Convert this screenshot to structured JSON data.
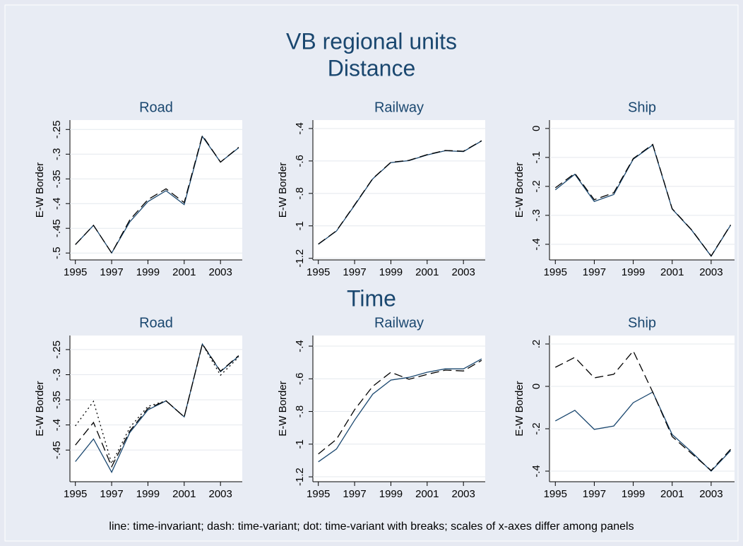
{
  "header": {
    "title": "VB regional units",
    "sections": [
      "Distance",
      "Time"
    ]
  },
  "note": "line: time-invariant; dash: time-variant; dot: time-variant with breaks; scales of x-axes differ among panels",
  "chart_data": [
    {
      "type": "line",
      "title": "Road",
      "ylabel": "E-W Border",
      "x": [
        1995,
        1996,
        1997,
        1998,
        1999,
        2000,
        2001,
        2002,
        2003,
        2004
      ],
      "xlim": [
        1994.7,
        2004.2
      ],
      "xticks": [
        1995,
        1997,
        1999,
        2001,
        2003
      ],
      "ylim": [
        -0.514,
        -0.231
      ],
      "yticks": [
        {
          "value": -0.25,
          "label": "-.25"
        },
        {
          "value": -0.3,
          "label": "-.3"
        },
        {
          "value": -0.35,
          "label": "-.35"
        },
        {
          "value": -0.4,
          "label": "-.4"
        },
        {
          "value": -0.45,
          "label": "-.45"
        },
        {
          "value": -0.5,
          "label": "-.5"
        }
      ],
      "grid": true,
      "series": [
        {
          "color": "#1a476f",
          "style": "solid",
          "values": [
            -0.483,
            -0.444,
            -0.5,
            -0.437,
            -0.396,
            -0.374,
            -0.402,
            -0.264,
            -0.316,
            -0.287
          ]
        },
        {
          "color": "#000000",
          "style": "dashed",
          "values": [
            -0.483,
            -0.444,
            -0.5,
            -0.433,
            -0.392,
            -0.37,
            -0.398,
            -0.262,
            -0.316,
            -0.286
          ]
        }
      ]
    },
    {
      "type": "line",
      "title": "Railway",
      "ylabel": "E-W Border",
      "x": [
        1995,
        1996,
        1997,
        1998,
        1999,
        2000,
        2001,
        2002,
        2003,
        2004
      ],
      "xlim": [
        1994.7,
        2004.2
      ],
      "xticks": [
        1995,
        1997,
        1999,
        2001,
        2003
      ],
      "ylim": [
        -1.21,
        -0.348
      ],
      "yticks": [
        {
          "value": -0.4,
          "label": "-.4"
        },
        {
          "value": -0.6,
          "label": "-.6"
        },
        {
          "value": -0.8,
          "label": "-.8"
        },
        -1,
        -1.2
      ],
      "grid": true,
      "series": [
        {
          "color": "#1a476f",
          "style": "solid",
          "values": [
            -1.114,
            -1.032,
            -0.873,
            -0.71,
            -0.61,
            -0.598,
            -0.563,
            -0.537,
            -0.542,
            -0.477
          ]
        },
        {
          "color": "#000000",
          "style": "dashed",
          "values": [
            -1.112,
            -1.03,
            -0.87,
            -0.708,
            -0.608,
            -0.596,
            -0.561,
            -0.535,
            -0.54,
            -0.475
          ]
        }
      ]
    },
    {
      "type": "line",
      "title": "Ship",
      "ylabel": "E-W Border",
      "x": [
        1995,
        1996,
        1997,
        1998,
        1999,
        2000,
        2001,
        2002,
        2003,
        2004
      ],
      "xlim": [
        1994.7,
        2004.2
      ],
      "xticks": [
        1995,
        1997,
        1999,
        2001,
        2003
      ],
      "ylim": [
        -0.454,
        0.029
      ],
      "yticks": [
        0,
        {
          "value": -0.1,
          "label": "-.1"
        },
        {
          "value": -0.2,
          "label": "-.2"
        },
        {
          "value": -0.3,
          "label": "-.3"
        },
        {
          "value": -0.4,
          "label": "-.4"
        }
      ],
      "grid": true,
      "series": [
        {
          "color": "#1a476f",
          "style": "solid",
          "values": [
            -0.212,
            -0.158,
            -0.252,
            -0.228,
            -0.106,
            -0.057,
            -0.278,
            -0.351,
            -0.441,
            -0.334
          ]
        },
        {
          "color": "#000000",
          "style": "dashed",
          "values": [
            -0.205,
            -0.155,
            -0.246,
            -0.222,
            -0.104,
            -0.055,
            -0.277,
            -0.35,
            -0.44,
            -0.333
          ]
        }
      ]
    },
    {
      "type": "line",
      "title": "Road",
      "ylabel": "E-W Border",
      "x": [
        1995,
        1996,
        1997,
        1998,
        1999,
        2000,
        2001,
        2002,
        2003,
        2004
      ],
      "xlim": [
        1994.7,
        2004.2
      ],
      "xticks": [
        1995,
        1997,
        1999,
        2001,
        2003
      ],
      "ylim": [
        -0.513,
        -0.222
      ],
      "yticks": [
        {
          "value": -0.25,
          "label": "-.25"
        },
        {
          "value": -0.3,
          "label": "-.3"
        },
        {
          "value": -0.35,
          "label": "-.35"
        },
        {
          "value": -0.4,
          "label": "-.4"
        },
        {
          "value": -0.45,
          "label": "-.45"
        }
      ],
      "grid": true,
      "series": [
        {
          "color": "#1a476f",
          "style": "solid",
          "values": [
            -0.473,
            -0.428,
            -0.494,
            -0.415,
            -0.37,
            -0.352,
            -0.384,
            -0.239,
            -0.294,
            -0.263
          ]
        },
        {
          "color": "#000000",
          "style": "dashed",
          "values": [
            -0.44,
            -0.395,
            -0.483,
            -0.412,
            -0.367,
            -0.352,
            -0.384,
            -0.239,
            -0.293,
            -0.262
          ]
        },
        {
          "color": "#000000",
          "style": "dotted",
          "values": [
            -0.402,
            -0.353,
            -0.477,
            -0.405,
            -0.363,
            -0.352,
            -0.384,
            -0.239,
            -0.301,
            -0.265
          ]
        }
      ]
    },
    {
      "type": "line",
      "title": "Railway",
      "ylabel": "E-W Border",
      "x": [
        1995,
        1996,
        1997,
        1998,
        1999,
        2000,
        2001,
        2002,
        2003,
        2004
      ],
      "xlim": [
        1994.7,
        2004.2
      ],
      "xticks": [
        1995,
        1997,
        1999,
        2001,
        2003
      ],
      "ylim": [
        -1.23,
        -0.335
      ],
      "yticks": [
        {
          "value": -0.4,
          "label": "-.4"
        },
        {
          "value": -0.6,
          "label": "-.6"
        },
        {
          "value": -0.8,
          "label": "-.8"
        },
        -1,
        -1.2
      ],
      "grid": true,
      "series": [
        {
          "color": "#1a476f",
          "style": "solid",
          "values": [
            -1.108,
            -1.03,
            -0.853,
            -0.694,
            -0.608,
            -0.591,
            -0.56,
            -0.539,
            -0.539,
            -0.478
          ]
        },
        {
          "color": "#000000",
          "style": "dashed",
          "values": [
            -1.06,
            -0.97,
            -0.789,
            -0.646,
            -0.56,
            -0.603,
            -0.573,
            -0.547,
            -0.552,
            -0.487
          ]
        }
      ]
    },
    {
      "type": "line",
      "title": "Ship",
      "ylabel": "E-W Border",
      "x": [
        1995,
        1996,
        1997,
        1998,
        1999,
        2000,
        2001,
        2002,
        2003,
        2004
      ],
      "xlim": [
        1994.7,
        2004.2
      ],
      "xticks": [
        1995,
        1997,
        1999,
        2001,
        2003
      ],
      "ylim": [
        -0.45,
        0.24
      ],
      "yticks": [
        {
          "value": 0.2,
          "label": ".2"
        },
        0,
        {
          "value": -0.2,
          "label": "-.2"
        },
        {
          "value": -0.4,
          "label": "-.4"
        }
      ],
      "grid": true,
      "series": [
        {
          "color": "#1a476f",
          "style": "solid",
          "values": [
            -0.163,
            -0.113,
            -0.203,
            -0.187,
            -0.077,
            -0.027,
            -0.227,
            -0.31,
            -0.4,
            -0.303
          ]
        },
        {
          "color": "#000000",
          "style": "dashed",
          "values": [
            0.09,
            0.137,
            0.04,
            0.057,
            0.167,
            -0.027,
            -0.237,
            -0.317,
            -0.397,
            -0.297
          ]
        }
      ]
    }
  ]
}
